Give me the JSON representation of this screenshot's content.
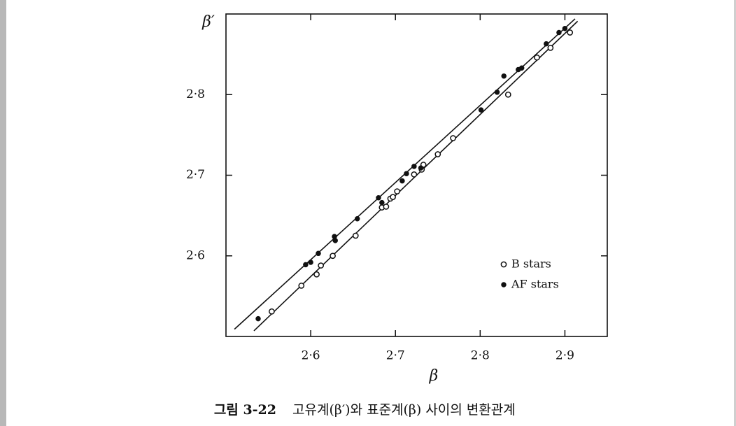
{
  "chart_data": {
    "type": "scatter",
    "x_label": "β",
    "y_label": "β′",
    "figure_label": "그림 3-22",
    "caption": "고유계(β′)와 표준계(β) 사이의 변환관계",
    "xlim": [
      2.5,
      2.95
    ],
    "ylim": [
      2.5,
      2.9
    ],
    "xticks": [
      {
        "value": 2.6,
        "label": "2·6"
      },
      {
        "value": 2.7,
        "label": "2·7"
      },
      {
        "value": 2.8,
        "label": "2·8"
      },
      {
        "value": 2.9,
        "label": "2·9"
      }
    ],
    "yticks": [
      {
        "value": 2.6,
        "label": "2·6"
      },
      {
        "value": 2.7,
        "label": "2·7"
      },
      {
        "value": 2.8,
        "label": "2·8"
      }
    ],
    "series": [
      {
        "name": "B stars",
        "marker": "open",
        "color": "#111111",
        "x": [
          2.554,
          2.589,
          2.607,
          2.612,
          2.626,
          2.653,
          2.684,
          2.689,
          2.694,
          2.697,
          2.702,
          2.722,
          2.731,
          2.733,
          2.75,
          2.768,
          2.833,
          2.867,
          2.883,
          2.906
        ],
        "values": [
          2.531,
          2.563,
          2.577,
          2.588,
          2.6,
          2.625,
          2.66,
          2.661,
          2.671,
          2.673,
          2.68,
          2.701,
          2.707,
          2.713,
          2.726,
          2.746,
          2.8,
          2.846,
          2.858,
          2.877
        ]
      },
      {
        "name": "AF stars",
        "marker": "filled",
        "color": "#111111",
        "x": [
          2.538,
          2.594,
          2.6,
          2.609,
          2.628,
          2.629,
          2.655,
          2.68,
          2.684,
          2.708,
          2.713,
          2.722,
          2.73,
          2.801,
          2.82,
          2.828,
          2.845,
          2.849,
          2.878,
          2.893,
          2.9
        ],
        "values": [
          2.522,
          2.589,
          2.592,
          2.603,
          2.624,
          2.619,
          2.646,
          2.672,
          2.666,
          2.693,
          2.702,
          2.711,
          2.709,
          2.781,
          2.803,
          2.823,
          2.831,
          2.833,
          2.863,
          2.877,
          2.882
        ]
      }
    ],
    "lines": [
      {
        "x": [
          2.51,
          2.912
        ],
        "values": [
          2.509,
          2.894
        ],
        "color": "#111111"
      },
      {
        "x": [
          2.533,
          2.915
        ],
        "values": [
          2.507,
          2.891
        ],
        "color": "#111111"
      }
    ]
  }
}
